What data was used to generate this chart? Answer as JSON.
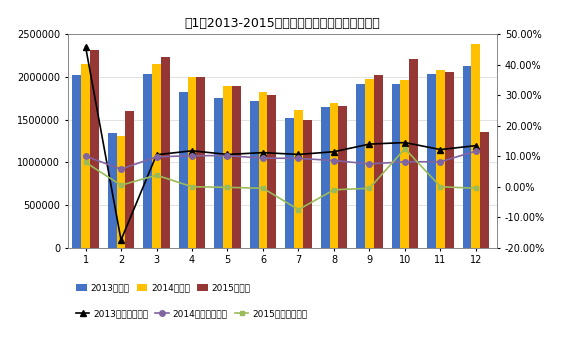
{
  "title": "图1：2013-2015年月度汽车销量及同比变化情况",
  "months": [
    1,
    2,
    3,
    4,
    5,
    6,
    7,
    8,
    9,
    10,
    11,
    12
  ],
  "sales_2013": [
    2020000,
    1340000,
    2030000,
    1820000,
    1750000,
    1720000,
    1520000,
    1650000,
    1920000,
    1920000,
    2040000,
    2130000
  ],
  "sales_2014": [
    2150000,
    1310000,
    2150000,
    2000000,
    1890000,
    1830000,
    1610000,
    1700000,
    1980000,
    1970000,
    2080000,
    2390000
  ],
  "sales_2015": [
    2320000,
    1600000,
    2230000,
    2000000,
    1890000,
    1790000,
    1500000,
    1660000,
    2020000,
    2210000,
    2060000,
    1360000
  ],
  "yoy_2013": [
    0.46,
    -0.175,
    0.105,
    0.118,
    0.106,
    0.112,
    0.106,
    0.115,
    0.14,
    0.145,
    0.122,
    0.135
  ],
  "yoy_2014": [
    0.1,
    0.058,
    0.098,
    0.102,
    0.102,
    0.094,
    0.093,
    0.086,
    0.075,
    0.082,
    0.082,
    0.117
  ],
  "yoy_2015": [
    0.08,
    0.005,
    0.038,
    0.0,
    -0.002,
    -0.005,
    -0.075,
    -0.01,
    -0.005,
    0.125,
    0.0,
    -0.005
  ],
  "bar_color_2013": "#4472C4",
  "bar_color_2014": "#FFC000",
  "bar_color_2015": "#953735",
  "line_color_2013": "#000000",
  "line_color_2014": "#8064A2",
  "line_color_2015": "#9BBB59",
  "ylim_left": [
    0,
    2500000
  ],
  "ylim_right": [
    -0.2,
    0.5
  ],
  "yticks_left": [
    0,
    500000,
    1000000,
    1500000,
    2000000,
    2500000
  ],
  "ytick_labels_left": [
    "0",
    "500000",
    "1000000",
    "1500000",
    "2000000",
    "2500000"
  ],
  "yticks_right": [
    -0.2,
    -0.1,
    0.0,
    0.1,
    0.2,
    0.3,
    0.4,
    0.5
  ],
  "ytick_labels_right": [
    "-20.00%",
    "-10.00%",
    "0.00%",
    "10.00%",
    "20.00%",
    "30.00%",
    "40.00%",
    "50.00%"
  ],
  "legend_bar_labels": [
    "2013年销量",
    "2014年销量",
    "2015年销量"
  ],
  "legend_line_labels": [
    "2013年同比增长率",
    "2014年同比增长率",
    "2015年同比增长率"
  ]
}
